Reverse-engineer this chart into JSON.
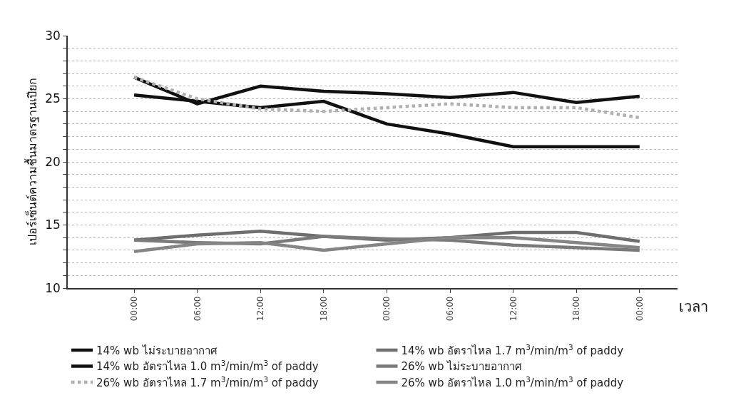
{
  "chart_data": {
    "type": "line",
    "ylabel": "เปอร์เซ็นต์ความชื้นมาตรฐานเปียก",
    "xlabel": "เวลา",
    "categories": [
      "00:00",
      "06:00",
      "12:00",
      "18:00",
      "00:00",
      "06:00",
      "12:00",
      "18:00",
      "00:00"
    ],
    "series": [
      {
        "name": "14% wb ไม่ระบายอากาศ",
        "color": "#111111",
        "values": [
          25.3,
          24.8,
          24.3,
          24.8,
          23.0,
          22.2,
          21.2,
          21.2,
          21.2
        ]
      },
      {
        "name": "14% wb อัตราไหล 1.7 m$^{3}$/min/m$^{3}$ of paddy",
        "color": "#6e6e6e",
        "values": [
          13.8,
          14.2,
          14.5,
          14.1,
          13.8,
          14.0,
          14.4,
          14.4,
          13.7
        ]
      },
      {
        "name": "14% wb อัตราไหล 1.0 m$^{3}$/min/m$^{3}$ of paddy",
        "color": "#111111",
        "values": [
          26.7,
          24.6,
          26.0,
          25.6,
          25.4,
          25.1,
          25.5,
          24.7,
          25.2
        ]
      },
      {
        "name": "26% wb ไม่ระบายอากาศ",
        "color": "#7a7a7a",
        "values": [
          13.8,
          13.6,
          13.5,
          14.1,
          13.9,
          13.8,
          13.4,
          13.2,
          13.0
        ]
      },
      {
        "name": "26% wb อัตราไหล 1.7 m$^{3}$/min/m$^{3}$ of paddy",
        "color": "#b0b0b0",
        "line_style": "dotted",
        "values": [
          26.7,
          25.0,
          24.2,
          24.0,
          24.3,
          24.6,
          24.3,
          24.3,
          23.5
        ]
      },
      {
        "name": "26% wb อัตราไหล 1.0 m$^{3}$/min/m$^{3}$ of paddy",
        "color": "#858585",
        "values": [
          12.9,
          13.5,
          13.6,
          13.0,
          13.5,
          14.0,
          14.0,
          13.6,
          13.2
        ]
      }
    ],
    "ylim": [
      10,
      30
    ],
    "yticks": [
      10,
      {
        "value": 11,
        "label": null
      },
      {
        "value": 12,
        "label": null
      },
      {
        "value": 13,
        "label": null
      },
      {
        "value": 14,
        "label": null
      },
      15,
      {
        "value": 16,
        "label": null
      },
      {
        "value": 17,
        "label": null
      },
      {
        "value": 18,
        "label": null
      },
      {
        "value": 19,
        "label": null
      },
      20,
      {
        "value": 21,
        "label": null
      },
      {
        "value": 22,
        "label": null
      },
      {
        "value": 23,
        "label": null
      },
      {
        "value": 24,
        "label": null
      },
      25,
      {
        "value": 26,
        "label": null
      },
      {
        "value": 27,
        "label": null
      },
      {
        "value": 28,
        "label": null
      },
      {
        "value": 29,
        "label": null
      },
      30
    ],
    "grid": "y",
    "legend": "bottom",
    "line_style": "solid",
    "marker": "none"
  }
}
